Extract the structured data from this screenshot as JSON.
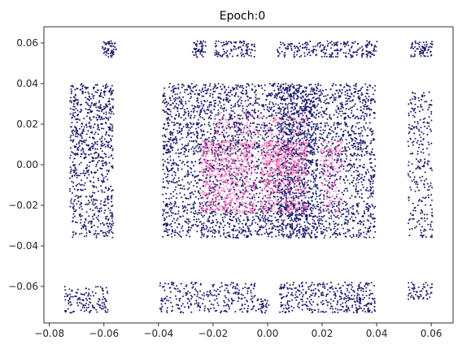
{
  "chart_data": {
    "type": "scatter",
    "title": "Epoch:0",
    "xlabel": "",
    "ylabel": "",
    "xlim": [
      -0.082,
      0.068
    ],
    "ylim": [
      -0.078,
      0.068
    ],
    "xticks": [
      -0.08,
      -0.06,
      -0.04,
      -0.02,
      0.0,
      0.02,
      0.04,
      0.06
    ],
    "xtick_labels": [
      "−0.08",
      "−0.06",
      "−0.04",
      "−0.02",
      "0.00",
      "0.02",
      "0.04",
      "0.06"
    ],
    "yticks": [
      -0.06,
      -0.04,
      -0.02,
      0.0,
      0.02,
      0.04,
      0.06
    ],
    "ytick_labels": [
      "−0.06",
      "−0.04",
      "−0.02",
      "0.00",
      "0.02",
      "0.04",
      "0.06"
    ],
    "grid": false,
    "legend": "none",
    "series": [
      {
        "color": "#1a1a6e",
        "point_radius": 1.0,
        "clusters": [
          {
            "x": [
              -0.0605,
              -0.0555
            ],
            "y": [
              0.053,
              0.061
            ],
            "n": 55
          },
          {
            "x": [
              -0.0275,
              -0.0225
            ],
            "y": [
              0.053,
              0.061
            ],
            "n": 50
          },
          {
            "x": [
              -0.0195,
              -0.0045
            ],
            "y": [
              0.053,
              0.061
            ],
            "n": 100
          },
          {
            "x": [
              0.0035,
              0.0405
            ],
            "y": [
              0.053,
              0.061
            ],
            "n": 230
          },
          {
            "x": [
              0.0525,
              0.0605
            ],
            "y": [
              0.053,
              0.061
            ],
            "n": 70
          },
          {
            "x": [
              -0.0725,
              -0.0565
            ],
            "y": [
              0.022,
              0.04
            ],
            "n": 230
          },
          {
            "x": [
              -0.0725,
              -0.0565
            ],
            "y": [
              0.003,
              0.021
            ],
            "n": 230
          },
          {
            "x": [
              -0.0725,
              -0.0565
            ],
            "y": [
              -0.014,
              0.002
            ],
            "n": 140
          },
          {
            "x": [
              -0.0725,
              -0.0565
            ],
            "y": [
              -0.036,
              -0.015
            ],
            "n": 200
          },
          {
            "x": [
              0.0515,
              0.0605
            ],
            "y": [
              -0.036,
              0.036
            ],
            "n": 260
          },
          {
            "x": [
              -0.0385,
              0.0395
            ],
            "y": [
              0.022,
              0.04
            ],
            "n": 950
          },
          {
            "x": [
              -0.0385,
              0.0395
            ],
            "y": [
              0.004,
              0.021
            ],
            "n": 950
          },
          {
            "x": [
              -0.0385,
              0.0395
            ],
            "y": [
              -0.017,
              0.003
            ],
            "n": 850
          },
          {
            "x": [
              -0.0385,
              0.0395
            ],
            "y": [
              -0.036,
              -0.018
            ],
            "n": 950
          },
          {
            "x": [
              0.0035,
              0.0185
            ],
            "y": [
              -0.036,
              0.04
            ],
            "n": 700
          },
          {
            "x": [
              -0.0745,
              -0.0585
            ],
            "y": [
              -0.073,
              -0.06
            ],
            "n": 130
          },
          {
            "x": [
              -0.0395,
              -0.0045
            ],
            "y": [
              -0.073,
              -0.058
            ],
            "n": 270
          },
          {
            "x": [
              -0.0045,
              0.0005
            ],
            "y": [
              -0.073,
              -0.066
            ],
            "n": 35
          },
          {
            "x": [
              0.0045,
              0.0395
            ],
            "y": [
              -0.073,
              -0.058
            ],
            "n": 380
          },
          {
            "x": [
              0.0515,
              0.0605
            ],
            "y": [
              -0.067,
              -0.058
            ],
            "n": 55
          }
        ]
      },
      {
        "color": "#ff69b4",
        "point_radius": 1.0,
        "clusters": [
          {
            "x": [
              -0.0245,
              -0.0045
            ],
            "y": [
              -0.006,
              0.012
            ],
            "n": 400
          },
          {
            "x": [
              -0.0025,
              0.0145
            ],
            "y": [
              -0.006,
              0.012
            ],
            "n": 450
          },
          {
            "x": [
              0.0195,
              0.0275
            ],
            "y": [
              -0.006,
              0.012
            ],
            "n": 110
          },
          {
            "x": [
              -0.0245,
              -0.0045
            ],
            "y": [
              -0.024,
              -0.007
            ],
            "n": 320
          },
          {
            "x": [
              -0.0025,
              0.0145
            ],
            "y": [
              -0.024,
              -0.007
            ],
            "n": 260
          },
          {
            "x": [
              0.0195,
              0.0275
            ],
            "y": [
              -0.024,
              -0.007
            ],
            "n": 70
          },
          {
            "x": [
              -0.0195,
              0.0145
            ],
            "y": [
              0.014,
              0.026
            ],
            "n": 160
          }
        ]
      }
    ]
  }
}
